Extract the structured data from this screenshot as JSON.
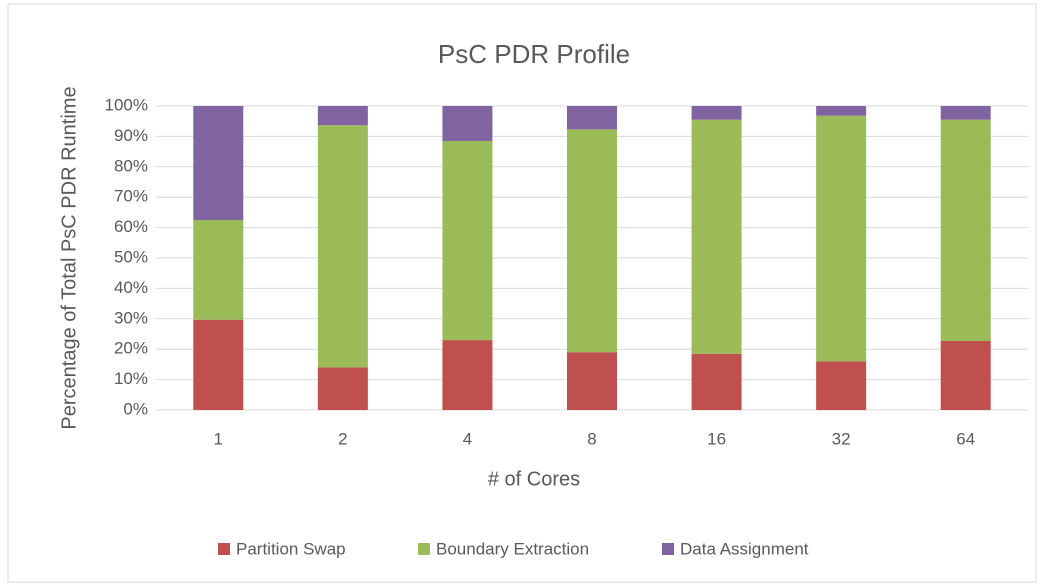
{
  "chart_data": {
    "type": "stacked_bar",
    "title": "PsC PDR Profile",
    "x_label": "# of Cores",
    "y_label": "Percentage of Total PsC PDR Runtime",
    "categories": [
      "1",
      "2",
      "4",
      "8",
      "16",
      "32",
      "64"
    ],
    "series": [
      {
        "name": "Partition Swap",
        "color": "#c0504d",
        "values": [
          29.7,
          14,
          23,
          19,
          18.5,
          16,
          22.7
        ]
      },
      {
        "name": "Boundary Extraction",
        "color": "#9bbb59",
        "values": [
          32.8,
          79.7,
          65.5,
          73.3,
          77,
          80.8,
          72.8
        ]
      },
      {
        "name": "Data Assignment",
        "color": "#8064a2",
        "values": [
          37.5,
          6.3,
          11.5,
          7.7,
          4.5,
          3.2,
          4.5
        ]
      }
    ],
    "ylim": [
      0,
      100
    ],
    "yticks": [
      {
        "value": 0,
        "label": "0%"
      },
      {
        "value": 10,
        "label": "10%"
      },
      {
        "value": 20,
        "label": "20%"
      },
      {
        "value": 30,
        "label": "30%"
      },
      {
        "value": 40,
        "label": "40%"
      },
      {
        "value": 50,
        "label": "50%"
      },
      {
        "value": 60,
        "label": "60%"
      },
      {
        "value": 70,
        "label": "70%"
      },
      {
        "value": 80,
        "label": "80%"
      },
      {
        "value": 90,
        "label": "90%"
      },
      {
        "value": 100,
        "label": "100%"
      }
    ],
    "grid": true,
    "legend": "bottom"
  }
}
